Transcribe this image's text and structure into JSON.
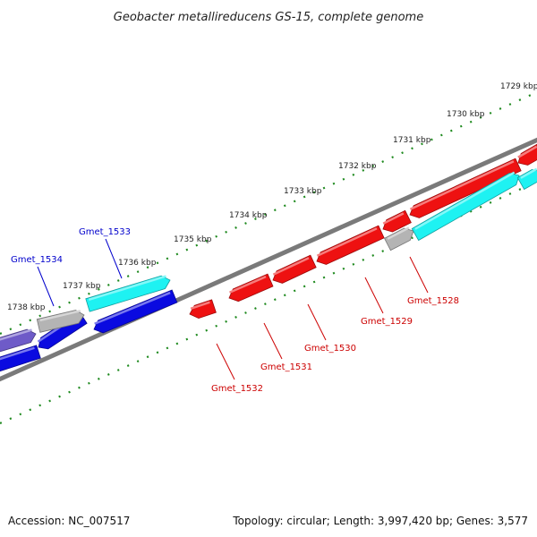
{
  "title": "Geobacter metallireducens GS-15, complete genome",
  "footer": {
    "accession": "Accession: NC_007517",
    "summary": "Topology: circular; Length: 3,997,420 bp; Genes: 3,577"
  },
  "colors": {
    "backbone": "#7a7a7a",
    "tick": "#1f8a1f",
    "label_forward": "#0000cc",
    "label_reverse": "#cc0000",
    "red": "#ee1111",
    "blue": "#0a0ae0",
    "cyan": "#1ef2f2",
    "gray": "#b4b4b4",
    "purple": "#6e5bc8"
  },
  "ticks": [
    "1729 kbp",
    "1730 kbp",
    "1731 kbp",
    "1732 kbp",
    "1733 kbp",
    "1734 kbp",
    "1735 kbp",
    "1736 kbp",
    "1737 kbp",
    "1738 kbp"
  ],
  "labels": [
    {
      "text": "Gmet_1533",
      "strand": "forward"
    },
    {
      "text": "Gmet_1534",
      "strand": "forward"
    },
    {
      "text": "Gmet_1528",
      "strand": "reverse"
    },
    {
      "text": "Gmet_1529",
      "strand": "reverse"
    },
    {
      "text": "Gmet_1530",
      "strand": "reverse"
    },
    {
      "text": "Gmet_1531",
      "strand": "reverse"
    },
    {
      "text": "Gmet_1532",
      "strand": "reverse"
    }
  ]
}
